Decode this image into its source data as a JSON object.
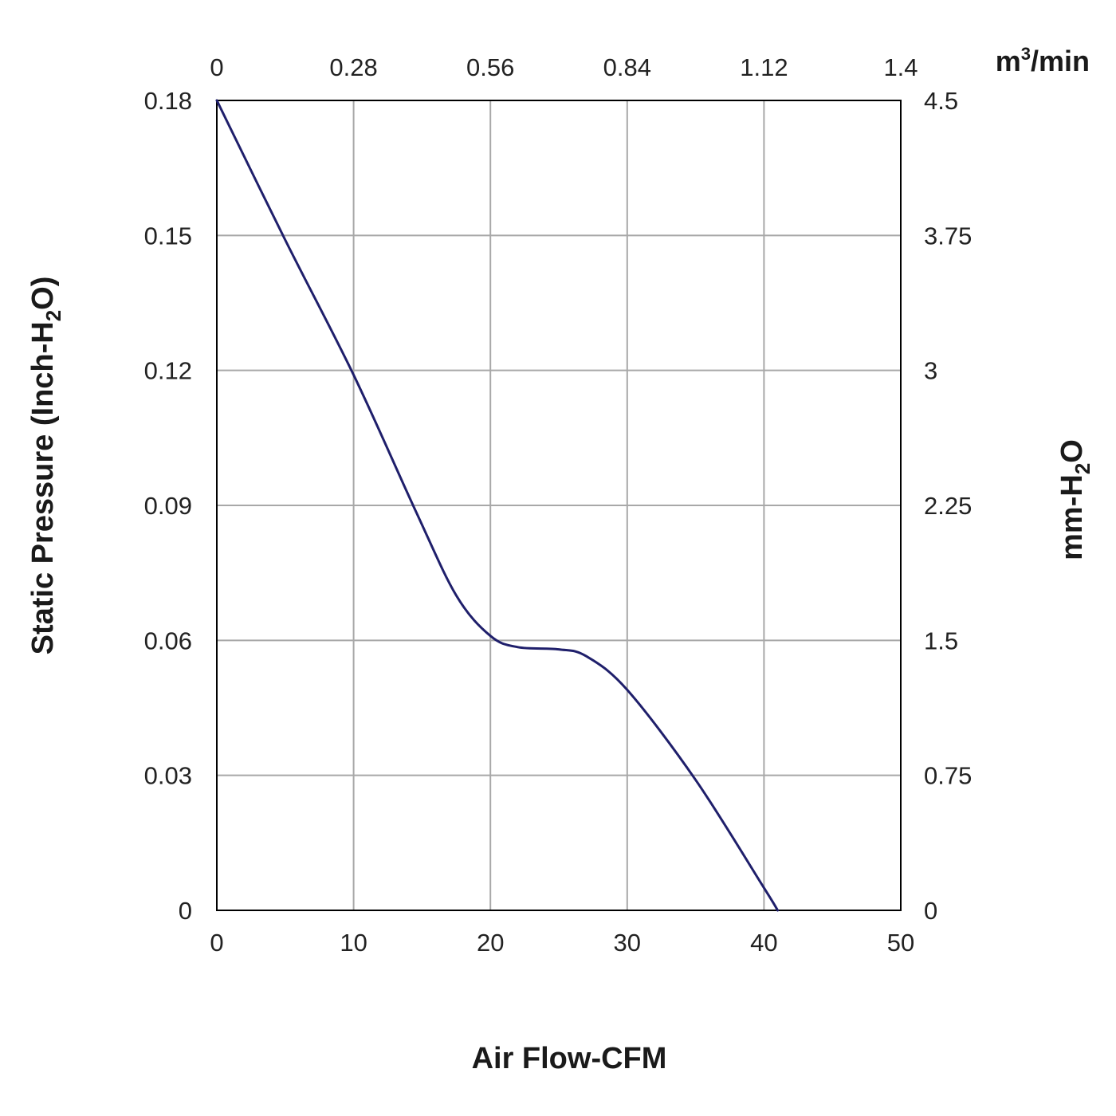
{
  "chart_data": {
    "type": "line",
    "title": "",
    "xlabel": "Air Flow-CFM",
    "ylabel": {
      "main": "Static Pressure (Inch-H",
      "sub": "2",
      "tail": "O)"
    },
    "y2label": {
      "main": "mm-H",
      "sub": "2",
      "tail": "O"
    },
    "x2label": {
      "main": "m",
      "sup": "3",
      "tail": "/min"
    },
    "xlim": [
      0,
      50
    ],
    "ylim": [
      0,
      0.18
    ],
    "grid": true,
    "x_ticks": [
      "0",
      "10",
      "20",
      "30",
      "40",
      "50"
    ],
    "y_ticks": [
      "0",
      "0.03",
      "0.06",
      "0.09",
      "0.12",
      "0.15",
      "0.18"
    ],
    "x2_ticks": [
      "0",
      "0.28",
      "0.56",
      "0.84",
      "1.12",
      "1.4"
    ],
    "y2_ticks": [
      "0",
      "0.75",
      "1.5",
      "2.25",
      "3",
      "3.75",
      "4.5"
    ],
    "series": [
      {
        "color": "#1f1f6b",
        "points": [
          [
            0,
            0.18
          ],
          [
            5,
            0.149
          ],
          [
            10,
            0.119
          ],
          [
            14.5,
            0.089
          ],
          [
            17.5,
            0.07
          ],
          [
            20,
            0.061
          ],
          [
            22,
            0.0585
          ],
          [
            25,
            0.058
          ],
          [
            27,
            0.0565
          ],
          [
            30,
            0.049
          ],
          [
            35,
            0.029
          ],
          [
            40,
            0.005
          ],
          [
            41,
            0
          ]
        ]
      }
    ]
  }
}
